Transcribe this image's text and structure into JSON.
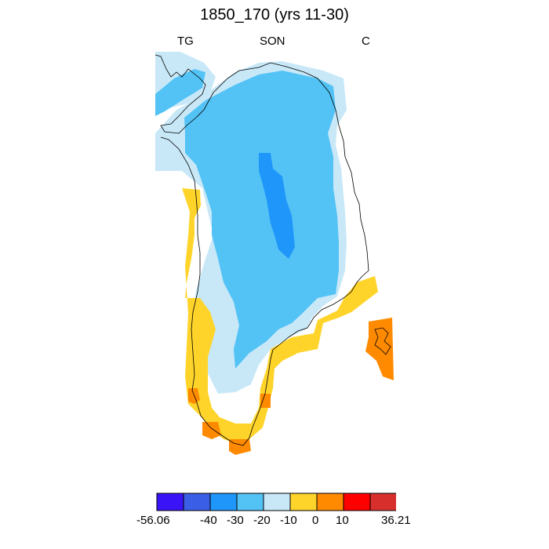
{
  "figure": {
    "title": "1850_170 (yrs 11-30)",
    "left_label": "TG",
    "center_label": "SON",
    "right_label": "C"
  },
  "colorbar": {
    "colors": [
      "#3a14f6",
      "#3b5ee6",
      "#1e96fa",
      "#53c2f5",
      "#c8e8f8",
      "#ffd42a",
      "#ff8a00",
      "#ff0000",
      "#d7302c"
    ],
    "tick_labels": [
      "-56.06",
      "-40",
      "-30",
      "-20",
      "-10",
      "0",
      "10",
      "36.21"
    ]
  },
  "map": {
    "region": "Greenland",
    "legend_colors": {
      "light_blue": "#c8e8f8",
      "mid_blue": "#53c2f5",
      "blue": "#1e96fa",
      "yellow": "#ffd42a",
      "orange": "#ff8a00"
    }
  }
}
